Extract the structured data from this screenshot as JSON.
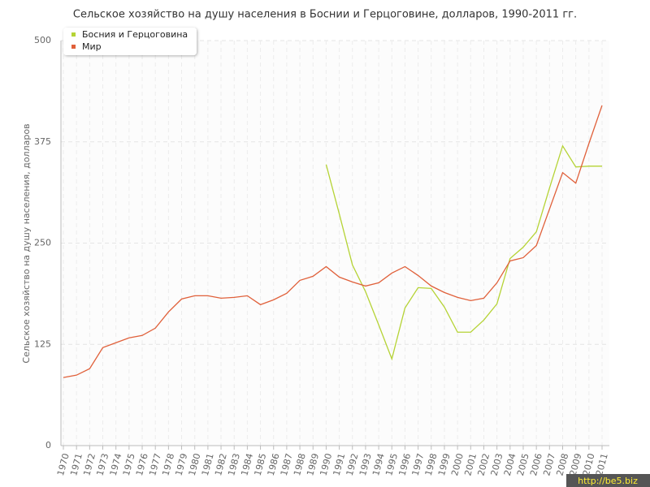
{
  "chart_data": {
    "type": "line",
    "title": "Сельское хозяйство на душу населения в Боснии и Герцоговине, долларов, 1990-2011 гг.",
    "y_label": "Сельское хозяйство на душу населения, долларов",
    "categories": [
      "1970",
      "1971",
      "1972",
      "1973",
      "1974",
      "1975",
      "1976",
      "1977",
      "1978",
      "1979",
      "1980",
      "1981",
      "1982",
      "1983",
      "1984",
      "1985",
      "1986",
      "1987",
      "1988",
      "1989",
      "1990",
      "1991",
      "1992",
      "1993",
      "1994",
      "1995",
      "1996",
      "1997",
      "1998",
      "1999",
      "2000",
      "2001",
      "2002",
      "2003",
      "2004",
      "2005",
      "2006",
      "2007",
      "2008",
      "2009",
      "2010",
      "2011"
    ],
    "series": [
      {
        "name": "Босния и Герцоговина",
        "color": "#b5d335",
        "values": [
          null,
          null,
          null,
          null,
          null,
          null,
          null,
          null,
          null,
          null,
          null,
          null,
          null,
          null,
          null,
          null,
          null,
          null,
          null,
          null,
          347,
          286,
          223,
          190,
          149,
          107,
          170,
          195,
          194,
          171,
          140,
          140,
          155,
          175,
          231,
          245,
          264,
          318,
          370,
          344,
          345,
          345
        ]
      },
      {
        "name": "Мир",
        "color": "#e0603a",
        "values": [
          84,
          87,
          95,
          121,
          127,
          133,
          136,
          145,
          165,
          181,
          185,
          185,
          182,
          183,
          185,
          174,
          180,
          188,
          204,
          209,
          221,
          208,
          202,
          197,
          201,
          213,
          221,
          210,
          197,
          189,
          183,
          179,
          182,
          201,
          228,
          232,
          247,
          292,
          337,
          324,
          373,
          420
        ]
      }
    ],
    "ylim": [
      0,
      500
    ],
    "yticks": [
      0,
      125,
      250,
      375,
      500
    ],
    "grid": true,
    "legend": "top-left",
    "watermark": "http://be5.biz"
  }
}
